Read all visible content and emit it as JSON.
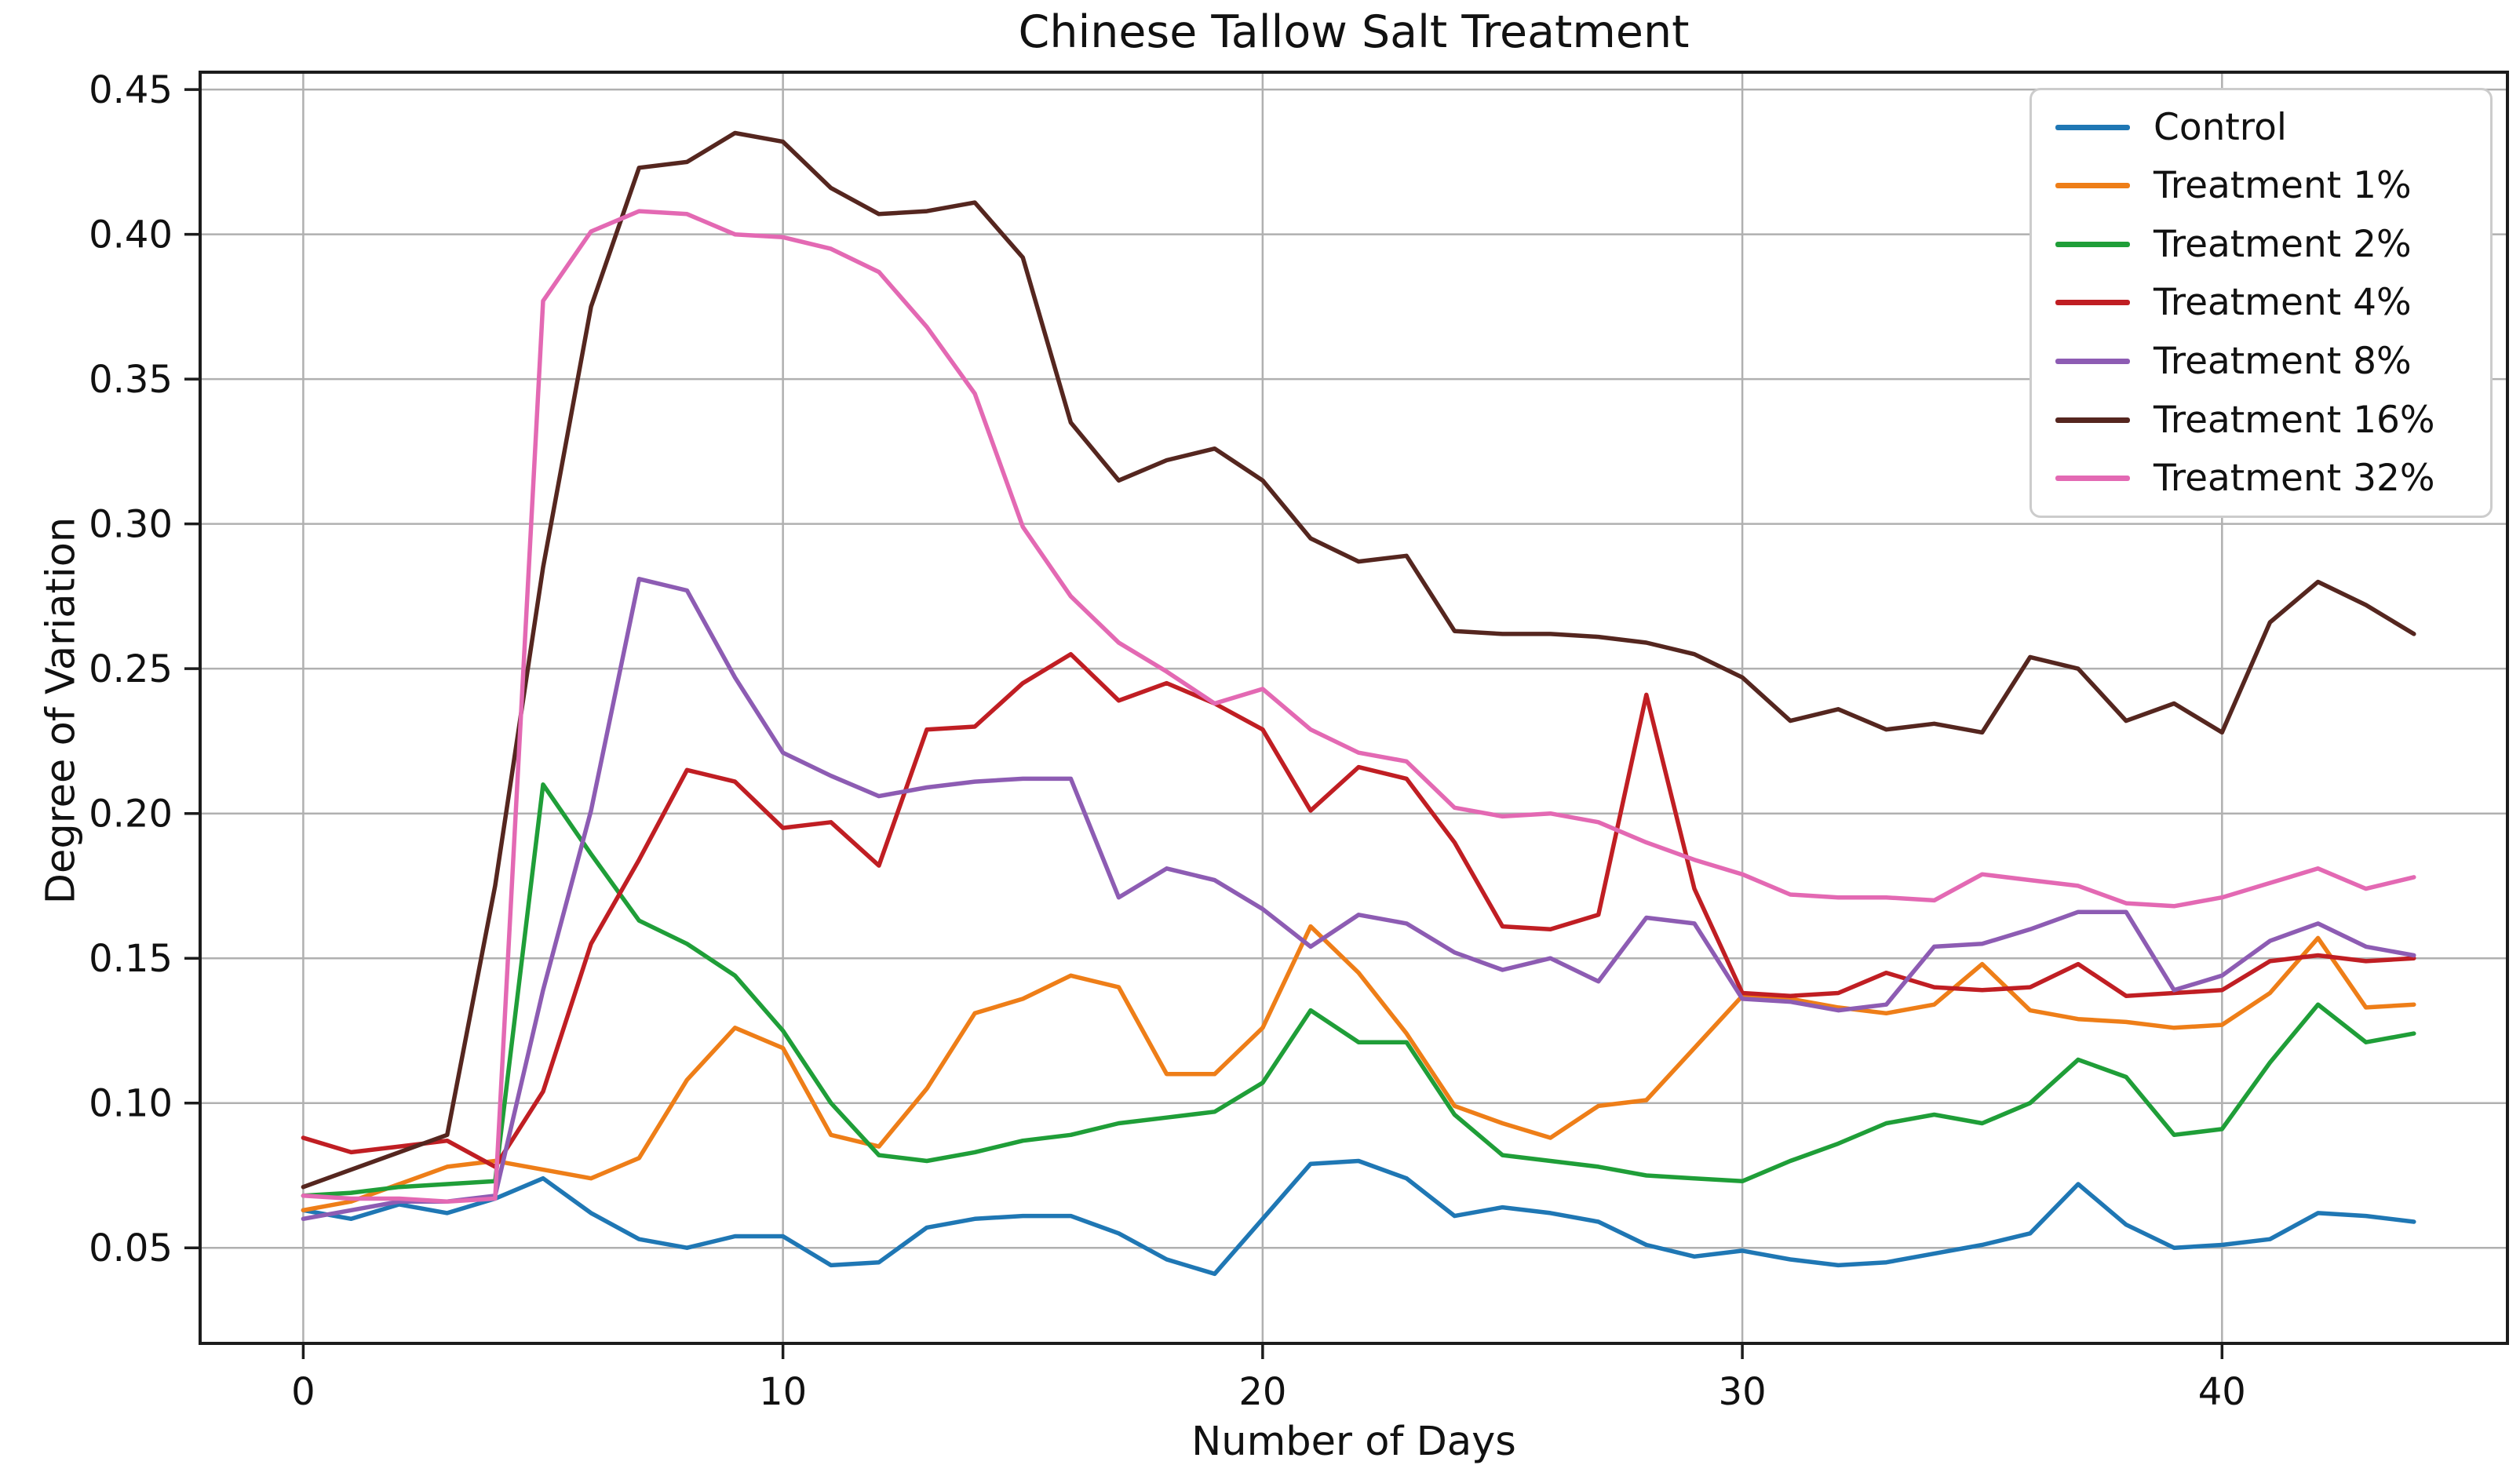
{
  "title": "Chinese Tallow Salt Treatment",
  "axes": {
    "xlabel": "Number of Days",
    "ylabel": "Degree of Variation",
    "x_tick_labels": [
      "0",
      "10",
      "20",
      "30",
      "40"
    ],
    "y_tick_labels": [
      "0.45",
      "0.40",
      "0.35",
      "0.30",
      "0.25",
      "0.20",
      "0.15",
      "0.10",
      "0.05"
    ]
  },
  "colors": {
    "grid": "#b0b0b0",
    "spine": "#1c1c1c",
    "background": "#ffffff",
    "text": "#111111"
  },
  "chart_data": {
    "type": "line",
    "title": "Chinese Tallow Salt Treatment",
    "xlabel": "Number of Days",
    "ylabel": "Degree of Variation",
    "grid": true,
    "legend_position": "upper right",
    "xlim": [
      -2.15,
      45.95
    ],
    "ylim": [
      0.017,
      0.456
    ],
    "x_ticks": [
      0,
      10,
      20,
      30,
      40
    ],
    "y_ticks": [
      0.45,
      0.4,
      0.35,
      0.3,
      0.25,
      0.2,
      0.15,
      0.1,
      0.05
    ],
    "x": [
      0,
      1,
      2,
      3,
      4,
      5,
      6,
      7,
      8,
      9,
      10,
      11,
      12,
      13,
      14,
      15,
      16,
      17,
      18,
      19,
      20,
      21,
      22,
      23,
      24,
      25,
      26,
      27,
      28,
      29,
      30,
      31,
      32,
      33,
      34,
      35,
      36,
      37,
      38,
      39,
      40,
      41,
      42,
      43,
      44
    ],
    "series": [
      {
        "name": "Control",
        "color": "#1f77b4",
        "values": [
          0.063,
          0.06,
          0.065,
          0.062,
          0.067,
          0.074,
          0.062,
          0.053,
          0.05,
          0.054,
          0.054,
          0.044,
          0.045,
          0.057,
          0.06,
          0.061,
          0.061,
          0.055,
          0.046,
          0.041,
          0.06,
          0.079,
          0.08,
          0.074,
          0.061,
          0.064,
          0.062,
          0.059,
          0.051,
          0.047,
          0.049,
          0.046,
          0.044,
          0.045,
          0.048,
          0.051,
          0.055,
          0.072,
          0.058,
          0.05,
          0.051,
          0.053,
          0.062,
          0.061,
          0.059
        ]
      },
      {
        "name": "Treatment 1%",
        "color": "#ee7e18",
        "values": [
          0.063,
          0.066,
          0.072,
          0.078,
          0.08,
          0.077,
          0.074,
          0.081,
          0.108,
          0.126,
          0.119,
          0.089,
          0.085,
          0.105,
          0.131,
          0.136,
          0.144,
          0.14,
          0.11,
          0.11,
          0.126,
          0.161,
          0.145,
          0.124,
          0.099,
          0.093,
          0.088,
          0.099,
          0.101,
          0.119,
          0.137,
          0.136,
          0.133,
          0.131,
          0.134,
          0.148,
          0.132,
          0.129,
          0.128,
          0.126,
          0.127,
          0.138,
          0.157,
          0.133,
          0.134
        ]
      },
      {
        "name": "Treatment 2%",
        "color": "#1f9e38",
        "values": [
          0.068,
          0.069,
          0.071,
          0.072,
          0.073,
          0.21,
          0.186,
          0.163,
          0.155,
          0.144,
          0.125,
          0.1,
          0.082,
          0.08,
          0.083,
          0.087,
          0.089,
          0.093,
          0.095,
          0.097,
          0.107,
          0.132,
          0.121,
          0.121,
          0.096,
          0.082,
          0.08,
          0.078,
          0.075,
          0.074,
          0.073,
          0.08,
          0.086,
          0.093,
          0.096,
          0.093,
          0.1,
          0.115,
          0.109,
          0.089,
          0.091,
          0.114,
          0.134,
          0.121,
          0.124
        ]
      },
      {
        "name": "Treatment 4%",
        "color": "#c01e23",
        "values": [
          0.088,
          0.083,
          0.085,
          0.087,
          0.078,
          0.104,
          0.155,
          0.184,
          0.215,
          0.211,
          0.195,
          0.197,
          0.182,
          0.229,
          0.23,
          0.245,
          0.255,
          0.239,
          0.245,
          0.238,
          0.229,
          0.201,
          0.216,
          0.212,
          0.19,
          0.161,
          0.16,
          0.165,
          0.241,
          0.174,
          0.138,
          0.137,
          0.138,
          0.145,
          0.14,
          0.139,
          0.14,
          0.148,
          0.137,
          0.138,
          0.139,
          0.149,
          0.151,
          0.149,
          0.15
        ]
      },
      {
        "name": "Treatment 8%",
        "color": "#8d5cb3",
        "values": [
          0.06,
          0.063,
          0.066,
          0.066,
          0.068,
          0.139,
          0.201,
          0.281,
          0.277,
          0.247,
          0.221,
          0.213,
          0.206,
          0.209,
          0.211,
          0.212,
          0.212,
          0.171,
          0.181,
          0.177,
          0.167,
          0.154,
          0.165,
          0.162,
          0.152,
          0.146,
          0.15,
          0.142,
          0.164,
          0.162,
          0.136,
          0.135,
          0.132,
          0.134,
          0.154,
          0.155,
          0.16,
          0.166,
          0.166,
          0.139,
          0.144,
          0.156,
          0.162,
          0.154,
          0.151
        ]
      },
      {
        "name": "Treatment 16%",
        "color": "#55261f",
        "values": [
          0.071,
          0.077,
          0.083,
          0.089,
          0.175,
          0.285,
          0.375,
          0.423,
          0.425,
          0.435,
          0.432,
          0.416,
          0.407,
          0.408,
          0.411,
          0.392,
          0.335,
          0.315,
          0.322,
          0.326,
          0.315,
          0.295,
          0.287,
          0.289,
          0.263,
          0.262,
          0.262,
          0.261,
          0.259,
          0.255,
          0.247,
          0.232,
          0.236,
          0.229,
          0.231,
          0.228,
          0.254,
          0.25,
          0.232,
          0.238,
          0.228,
          0.266,
          0.28,
          0.272,
          0.262
        ]
      },
      {
        "name": "Treatment 32%",
        "color": "#e369b3",
        "values": [
          0.068,
          0.067,
          0.067,
          0.066,
          0.067,
          0.377,
          0.401,
          0.408,
          0.407,
          0.4,
          0.399,
          0.395,
          0.387,
          0.368,
          0.345,
          0.299,
          0.275,
          0.259,
          0.249,
          0.238,
          0.243,
          0.229,
          0.221,
          0.218,
          0.202,
          0.199,
          0.2,
          0.197,
          0.19,
          0.184,
          0.179,
          0.172,
          0.171,
          0.171,
          0.17,
          0.179,
          0.177,
          0.175,
          0.169,
          0.168,
          0.171,
          0.176,
          0.181,
          0.174,
          0.178
        ]
      }
    ]
  }
}
